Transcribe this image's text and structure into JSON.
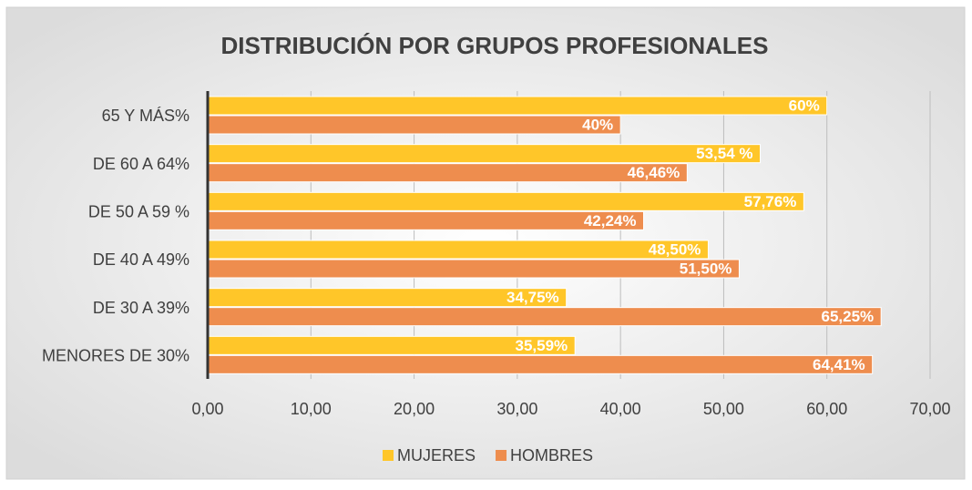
{
  "chart_data": {
    "type": "bar",
    "orientation": "horizontal",
    "title": "DISTRIBUCIÓN POR GRUPOS PROFESIONALES",
    "categories": [
      "65 Y MÁS%",
      "DE 60 A 64%",
      "DE 50 A 59 %",
      "DE 40 A 49%",
      "DE 30 A 39%",
      "MENORES DE 30%"
    ],
    "series": [
      {
        "name": "MUJERES",
        "color": "#FFC629",
        "values": [
          60,
          53.54,
          57.76,
          48.5,
          34.75,
          35.59
        ],
        "value_labels": [
          "60%",
          "53,54 %",
          "57,76%",
          "48,50%",
          "34,75%",
          "35,59%"
        ]
      },
      {
        "name": "HOMBRES",
        "color": "#EE8D4E",
        "values": [
          40,
          46.46,
          42.24,
          51.5,
          65.25,
          64.41
        ],
        "value_labels": [
          "40%",
          "46,46%",
          "42,24%",
          "51,50%",
          "65,25%",
          "64,41%"
        ]
      }
    ],
    "xlim": [
      0,
      70
    ],
    "xticks": [
      {
        "value": 0,
        "label": "0,00"
      },
      {
        "value": 10,
        "label": "10,00"
      },
      {
        "value": 20,
        "label": "20,00"
      },
      {
        "value": 30,
        "label": "30,00"
      },
      {
        "value": 40,
        "label": "40,00"
      },
      {
        "value": 50,
        "label": "50,00"
      },
      {
        "value": 60,
        "label": "60,00"
      },
      {
        "value": 70,
        "label": "70,00"
      }
    ],
    "grid": true,
    "legend": "bottom"
  }
}
